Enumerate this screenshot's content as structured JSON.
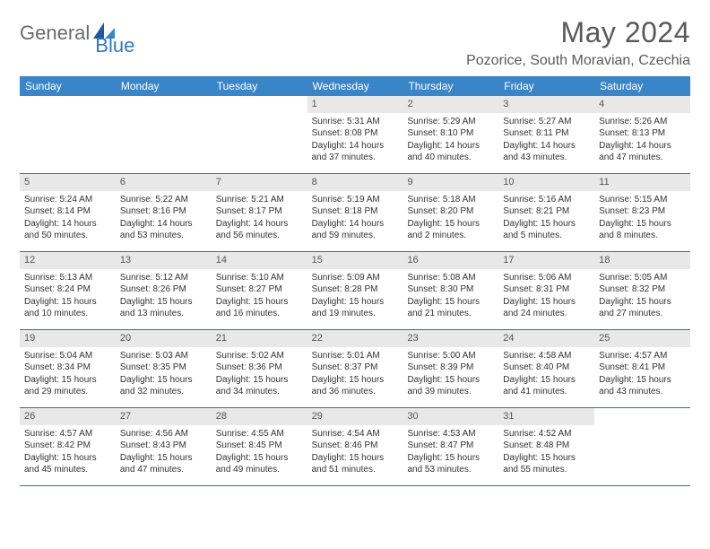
{
  "brand": {
    "part1": "General",
    "part2": "Blue"
  },
  "title": "May 2024",
  "location": "Pozorice, South Moravian, Czechia",
  "colors": {
    "header_bg": "#3a85c8",
    "header_text": "#ffffff",
    "day_header_bg": "#e8e8e8",
    "row_border": "#2f6fa8",
    "brand_gray": "#6a6a6a",
    "brand_blue": "#2f78bf",
    "title_color": "#5a5a5a"
  },
  "weekdays": [
    "Sunday",
    "Monday",
    "Tuesday",
    "Wednesday",
    "Thursday",
    "Friday",
    "Saturday"
  ],
  "weeks": [
    [
      {
        "num": "",
        "sunrise": "",
        "sunset": "",
        "daylight": ""
      },
      {
        "num": "",
        "sunrise": "",
        "sunset": "",
        "daylight": ""
      },
      {
        "num": "",
        "sunrise": "",
        "sunset": "",
        "daylight": ""
      },
      {
        "num": "1",
        "sunrise": "Sunrise: 5:31 AM",
        "sunset": "Sunset: 8:08 PM",
        "daylight": "Daylight: 14 hours and 37 minutes."
      },
      {
        "num": "2",
        "sunrise": "Sunrise: 5:29 AM",
        "sunset": "Sunset: 8:10 PM",
        "daylight": "Daylight: 14 hours and 40 minutes."
      },
      {
        "num": "3",
        "sunrise": "Sunrise: 5:27 AM",
        "sunset": "Sunset: 8:11 PM",
        "daylight": "Daylight: 14 hours and 43 minutes."
      },
      {
        "num": "4",
        "sunrise": "Sunrise: 5:26 AM",
        "sunset": "Sunset: 8:13 PM",
        "daylight": "Daylight: 14 hours and 47 minutes."
      }
    ],
    [
      {
        "num": "5",
        "sunrise": "Sunrise: 5:24 AM",
        "sunset": "Sunset: 8:14 PM",
        "daylight": "Daylight: 14 hours and 50 minutes."
      },
      {
        "num": "6",
        "sunrise": "Sunrise: 5:22 AM",
        "sunset": "Sunset: 8:16 PM",
        "daylight": "Daylight: 14 hours and 53 minutes."
      },
      {
        "num": "7",
        "sunrise": "Sunrise: 5:21 AM",
        "sunset": "Sunset: 8:17 PM",
        "daylight": "Daylight: 14 hours and 56 minutes."
      },
      {
        "num": "8",
        "sunrise": "Sunrise: 5:19 AM",
        "sunset": "Sunset: 8:18 PM",
        "daylight": "Daylight: 14 hours and 59 minutes."
      },
      {
        "num": "9",
        "sunrise": "Sunrise: 5:18 AM",
        "sunset": "Sunset: 8:20 PM",
        "daylight": "Daylight: 15 hours and 2 minutes."
      },
      {
        "num": "10",
        "sunrise": "Sunrise: 5:16 AM",
        "sunset": "Sunset: 8:21 PM",
        "daylight": "Daylight: 15 hours and 5 minutes."
      },
      {
        "num": "11",
        "sunrise": "Sunrise: 5:15 AM",
        "sunset": "Sunset: 8:23 PM",
        "daylight": "Daylight: 15 hours and 8 minutes."
      }
    ],
    [
      {
        "num": "12",
        "sunrise": "Sunrise: 5:13 AM",
        "sunset": "Sunset: 8:24 PM",
        "daylight": "Daylight: 15 hours and 10 minutes."
      },
      {
        "num": "13",
        "sunrise": "Sunrise: 5:12 AM",
        "sunset": "Sunset: 8:26 PM",
        "daylight": "Daylight: 15 hours and 13 minutes."
      },
      {
        "num": "14",
        "sunrise": "Sunrise: 5:10 AM",
        "sunset": "Sunset: 8:27 PM",
        "daylight": "Daylight: 15 hours and 16 minutes."
      },
      {
        "num": "15",
        "sunrise": "Sunrise: 5:09 AM",
        "sunset": "Sunset: 8:28 PM",
        "daylight": "Daylight: 15 hours and 19 minutes."
      },
      {
        "num": "16",
        "sunrise": "Sunrise: 5:08 AM",
        "sunset": "Sunset: 8:30 PM",
        "daylight": "Daylight: 15 hours and 21 minutes."
      },
      {
        "num": "17",
        "sunrise": "Sunrise: 5:06 AM",
        "sunset": "Sunset: 8:31 PM",
        "daylight": "Daylight: 15 hours and 24 minutes."
      },
      {
        "num": "18",
        "sunrise": "Sunrise: 5:05 AM",
        "sunset": "Sunset: 8:32 PM",
        "daylight": "Daylight: 15 hours and 27 minutes."
      }
    ],
    [
      {
        "num": "19",
        "sunrise": "Sunrise: 5:04 AM",
        "sunset": "Sunset: 8:34 PM",
        "daylight": "Daylight: 15 hours and 29 minutes."
      },
      {
        "num": "20",
        "sunrise": "Sunrise: 5:03 AM",
        "sunset": "Sunset: 8:35 PM",
        "daylight": "Daylight: 15 hours and 32 minutes."
      },
      {
        "num": "21",
        "sunrise": "Sunrise: 5:02 AM",
        "sunset": "Sunset: 8:36 PM",
        "daylight": "Daylight: 15 hours and 34 minutes."
      },
      {
        "num": "22",
        "sunrise": "Sunrise: 5:01 AM",
        "sunset": "Sunset: 8:37 PM",
        "daylight": "Daylight: 15 hours and 36 minutes."
      },
      {
        "num": "23",
        "sunrise": "Sunrise: 5:00 AM",
        "sunset": "Sunset: 8:39 PM",
        "daylight": "Daylight: 15 hours and 39 minutes."
      },
      {
        "num": "24",
        "sunrise": "Sunrise: 4:58 AM",
        "sunset": "Sunset: 8:40 PM",
        "daylight": "Daylight: 15 hours and 41 minutes."
      },
      {
        "num": "25",
        "sunrise": "Sunrise: 4:57 AM",
        "sunset": "Sunset: 8:41 PM",
        "daylight": "Daylight: 15 hours and 43 minutes."
      }
    ],
    [
      {
        "num": "26",
        "sunrise": "Sunrise: 4:57 AM",
        "sunset": "Sunset: 8:42 PM",
        "daylight": "Daylight: 15 hours and 45 minutes."
      },
      {
        "num": "27",
        "sunrise": "Sunrise: 4:56 AM",
        "sunset": "Sunset: 8:43 PM",
        "daylight": "Daylight: 15 hours and 47 minutes."
      },
      {
        "num": "28",
        "sunrise": "Sunrise: 4:55 AM",
        "sunset": "Sunset: 8:45 PM",
        "daylight": "Daylight: 15 hours and 49 minutes."
      },
      {
        "num": "29",
        "sunrise": "Sunrise: 4:54 AM",
        "sunset": "Sunset: 8:46 PM",
        "daylight": "Daylight: 15 hours and 51 minutes."
      },
      {
        "num": "30",
        "sunrise": "Sunrise: 4:53 AM",
        "sunset": "Sunset: 8:47 PM",
        "daylight": "Daylight: 15 hours and 53 minutes."
      },
      {
        "num": "31",
        "sunrise": "Sunrise: 4:52 AM",
        "sunset": "Sunset: 8:48 PM",
        "daylight": "Daylight: 15 hours and 55 minutes."
      },
      {
        "num": "",
        "sunrise": "",
        "sunset": "",
        "daylight": ""
      }
    ]
  ]
}
